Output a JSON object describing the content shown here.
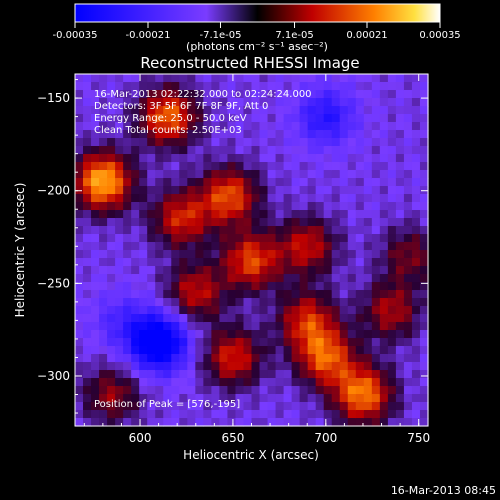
{
  "chart_data": {
    "type": "heatmap",
    "title": "Reconstructed RHESSI Image",
    "xlabel": "Heliocentric X (arcsec)",
    "ylabel": "Heliocentric Y (arcsec)",
    "xlim": [
      565,
      755
    ],
    "ylim": [
      -327,
      -137
    ],
    "xticks": [
      600,
      650,
      700,
      750
    ],
    "yticks": [
      -150,
      -200,
      -250,
      -300
    ],
    "colorbar": {
      "range": [
        -0.00035,
        0.00035
      ],
      "tick_labels": [
        "-0.00035",
        "-0.00021",
        "-7.1e-05",
        "7.1e-05",
        "0.00021",
        "0.00035"
      ],
      "label": "(photons cm⁻² s⁻¹ asec⁻²)"
    },
    "annotations": [
      "16-Mar-2013 02:22:32.000 to 02:24:24.000",
      "Detectors: 3F 5F 6F 7F 8F 9F, Att 0",
      "Energy Range: 25.0 - 50.0 keV",
      "Clean     Total counts: 2.50E+03",
      "Position of Peak = [576,-195]"
    ],
    "sources": [
      {
        "x": 580,
        "y": -195,
        "value": 0.00035
      },
      {
        "x": 615,
        "y": -160,
        "value": 0.00028
      },
      {
        "x": 648,
        "y": -203,
        "value": 0.00026
      },
      {
        "x": 622,
        "y": -215,
        "value": 0.00022
      },
      {
        "x": 690,
        "y": -230,
        "value": 0.0002
      },
      {
        "x": 660,
        "y": -238,
        "value": 0.00025
      },
      {
        "x": 630,
        "y": -255,
        "value": 0.0002
      },
      {
        "x": 690,
        "y": -270,
        "value": 0.00022
      },
      {
        "x": 735,
        "y": -265,
        "value": 0.00018
      },
      {
        "x": 650,
        "y": -290,
        "value": 0.00022
      },
      {
        "x": 700,
        "y": -290,
        "value": 0.00026
      },
      {
        "x": 720,
        "y": -310,
        "value": 0.0003
      },
      {
        "x": 585,
        "y": -310,
        "value": 0.00016
      },
      {
        "x": 745,
        "y": -235,
        "value": 0.00014
      },
      {
        "x": 610,
        "y": -282,
        "value": -0.00035
      },
      {
        "x": 700,
        "y": -160,
        "value": -0.00018
      },
      {
        "x": 590,
        "y": -270,
        "value": -0.0001
      }
    ]
  },
  "footer_timestamp": "16-Mar-2013 08:45"
}
